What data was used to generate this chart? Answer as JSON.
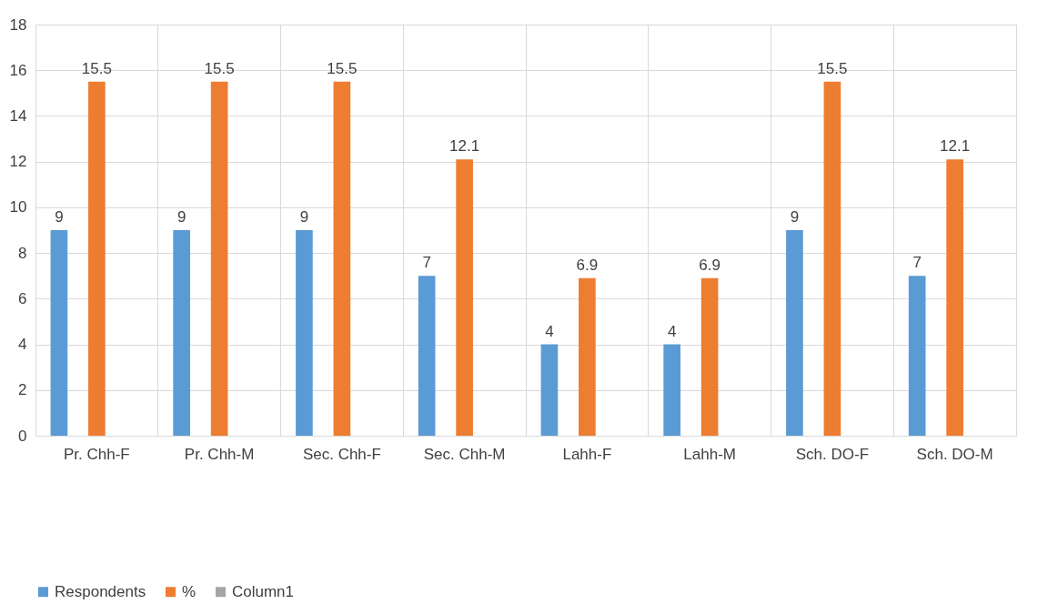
{
  "chart_data": {
    "type": "bar",
    "categories": [
      "Pr. Chh-F",
      "Pr. Chh-M",
      "Sec. Chh-F",
      "Sec. Chh-M",
      "Lahh-F",
      "Lahh-M",
      "Sch. DO-F",
      "Sch. DO-M"
    ],
    "series": [
      {
        "name": "Respondents",
        "color": "#5b9bd5",
        "values": [
          9,
          9,
          9,
          7,
          4,
          4,
          9,
          7
        ]
      },
      {
        "name": "%",
        "color": "#ed7d31",
        "values": [
          15.5,
          15.5,
          15.5,
          12.1,
          6.9,
          6.9,
          15.5,
          12.1
        ]
      },
      {
        "name": "Column1",
        "color": "#a5a5a5",
        "values": [
          null,
          null,
          null,
          null,
          null,
          null,
          null,
          null
        ]
      }
    ],
    "ylim": [
      0,
      18
    ],
    "yticks": [
      0,
      2,
      4,
      6,
      8,
      10,
      12,
      14,
      16,
      18
    ],
    "grid": true,
    "legend": "bottom",
    "data_labels": true
  }
}
